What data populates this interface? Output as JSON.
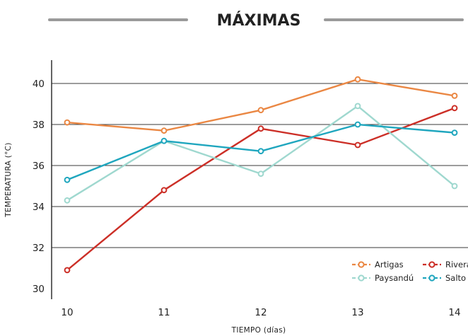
{
  "chart_data": {
    "type": "line",
    "title": "MÁXIMAS",
    "xlabel": "TIEMPO (días)",
    "ylabel": "TEMPERATURA (°C)",
    "x": [
      10,
      11,
      12,
      13,
      14
    ],
    "x_tick_labels": [
      "10",
      "11",
      "12",
      "13",
      "14"
    ],
    "y_ticks": [
      30,
      32,
      34,
      36,
      38,
      40
    ],
    "y_tick_labels": [
      "30",
      "32",
      "34",
      "36",
      "38",
      "40"
    ],
    "ylim": [
      29.7,
      41
    ],
    "grid": "horizontal",
    "legend_position": "bottom-right",
    "series": [
      {
        "name": "Artigas",
        "color": "#ea8743",
        "values": [
          38.1,
          37.7,
          38.7,
          40.2,
          39.4
        ]
      },
      {
        "name": "Rivera",
        "color": "#cc2f27",
        "values": [
          30.9,
          34.8,
          37.8,
          37.0,
          38.8
        ]
      },
      {
        "name": "Paysandú",
        "color": "#9fd8cf",
        "values": [
          34.3,
          37.2,
          35.6,
          38.9,
          35.0
        ]
      },
      {
        "name": "Salto",
        "color": "#1fa6be",
        "values": [
          35.3,
          37.2,
          36.7,
          38.0,
          37.6
        ]
      }
    ]
  }
}
